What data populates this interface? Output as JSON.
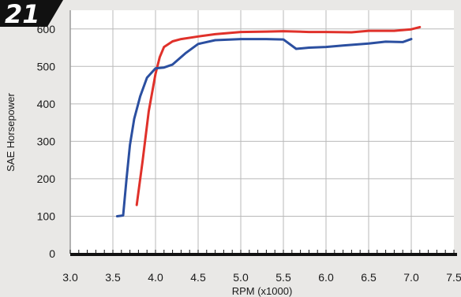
{
  "badge": {
    "text": "21"
  },
  "chart_data": {
    "type": "line",
    "title": "",
    "xlabel": "RPM (x1000)",
    "ylabel": "SAE Horsepower",
    "xlim": [
      3.0,
      7.5
    ],
    "ylim": [
      0,
      650
    ],
    "x_ticks": [
      "3.0",
      "3.5",
      "4.0",
      "4.5",
      "5.0",
      "5.5",
      "6.0",
      "6.5",
      "7.0",
      "7.5"
    ],
    "y_ticks": [
      "0",
      "100",
      "200",
      "300",
      "400",
      "500",
      "600"
    ],
    "x_tick_values": [
      3.0,
      3.5,
      4.0,
      4.5,
      5.0,
      5.5,
      6.0,
      6.5,
      7.0,
      7.5
    ],
    "y_tick_values": [
      0,
      100,
      200,
      300,
      400,
      500,
      600
    ],
    "grid": true,
    "series": [
      {
        "color": "#e0312a",
        "points": [
          [
            3.78,
            130
          ],
          [
            3.85,
            250
          ],
          [
            3.92,
            380
          ],
          [
            4.0,
            480
          ],
          [
            4.05,
            525
          ],
          [
            4.1,
            552
          ],
          [
            4.2,
            567
          ],
          [
            4.3,
            573
          ],
          [
            4.5,
            580
          ],
          [
            4.7,
            586
          ],
          [
            5.0,
            592
          ],
          [
            5.3,
            593
          ],
          [
            5.5,
            594
          ],
          [
            5.8,
            592
          ],
          [
            6.0,
            592
          ],
          [
            6.3,
            591
          ],
          [
            6.5,
            595
          ],
          [
            6.8,
            595
          ],
          [
            7.0,
            599
          ],
          [
            7.1,
            605
          ]
        ]
      },
      {
        "color": "#2b4fa0",
        "points": [
          [
            3.55,
            100
          ],
          [
            3.62,
            102
          ],
          [
            3.66,
            200
          ],
          [
            3.7,
            290
          ],
          [
            3.75,
            360
          ],
          [
            3.82,
            420
          ],
          [
            3.9,
            470
          ],
          [
            4.0,
            495
          ],
          [
            4.1,
            497
          ],
          [
            4.2,
            505
          ],
          [
            4.35,
            535
          ],
          [
            4.5,
            560
          ],
          [
            4.7,
            570
          ],
          [
            5.0,
            573
          ],
          [
            5.3,
            573
          ],
          [
            5.5,
            572
          ],
          [
            5.65,
            547
          ],
          [
            5.8,
            550
          ],
          [
            6.0,
            552
          ],
          [
            6.2,
            556
          ],
          [
            6.5,
            561
          ],
          [
            6.7,
            566
          ],
          [
            6.9,
            565
          ],
          [
            7.0,
            573
          ]
        ]
      }
    ]
  }
}
